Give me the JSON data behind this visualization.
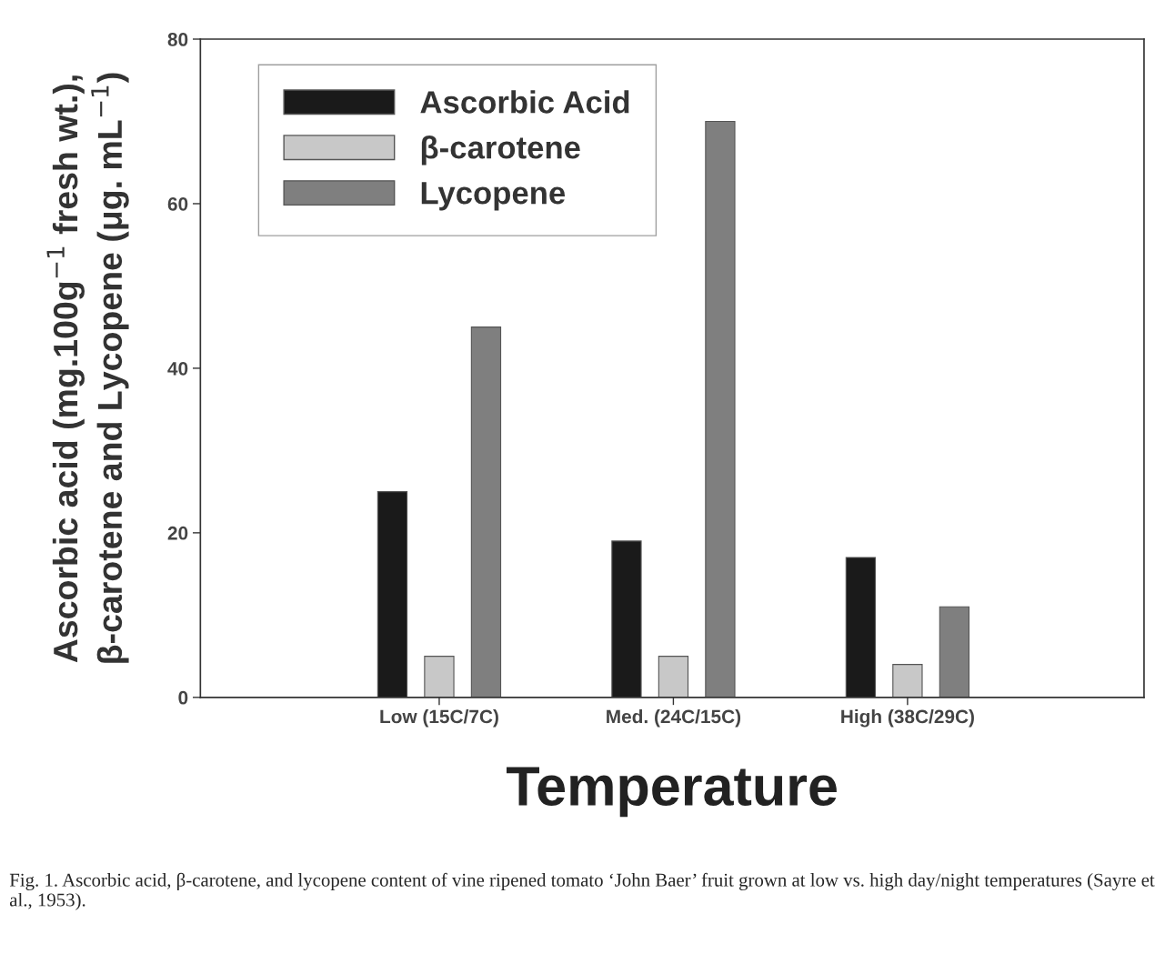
{
  "chart_data": {
    "type": "bar",
    "xlabel": "Temperature",
    "ylabel": "Ascorbic acid (mg.100g$^{−1}$ fresh wt.),\nβ-carotene and Lycopene (μg. mL$^{−1}$)",
    "categories": [
      "Low (15C/7C)",
      "Med. (24C/15C)",
      "High (38C/29C)"
    ],
    "series": [
      {
        "name": "Ascorbic Acid",
        "color": "#1a1a1a",
        "values": [
          25,
          19,
          17
        ]
      },
      {
        "name": "β-carotene",
        "color": "#c8c8c8",
        "values": [
          5,
          5,
          4
        ]
      },
      {
        "name": "Lycopene",
        "color": "#7f7f7f",
        "values": [
          45,
          70,
          11
        ]
      }
    ],
    "ylim": [
      0,
      80
    ],
    "yticks": [
      0,
      20,
      40,
      60,
      80
    ],
    "grid": false,
    "legend": "top left",
    "annotations": [
      "Fig. 1. Ascorbic acid, β-carotene, and lycopene content of vine ripened tomato ‘John Baer’ fruit grown at low vs. high day/night temperatures (Sayre et al., 1953)."
    ]
  }
}
